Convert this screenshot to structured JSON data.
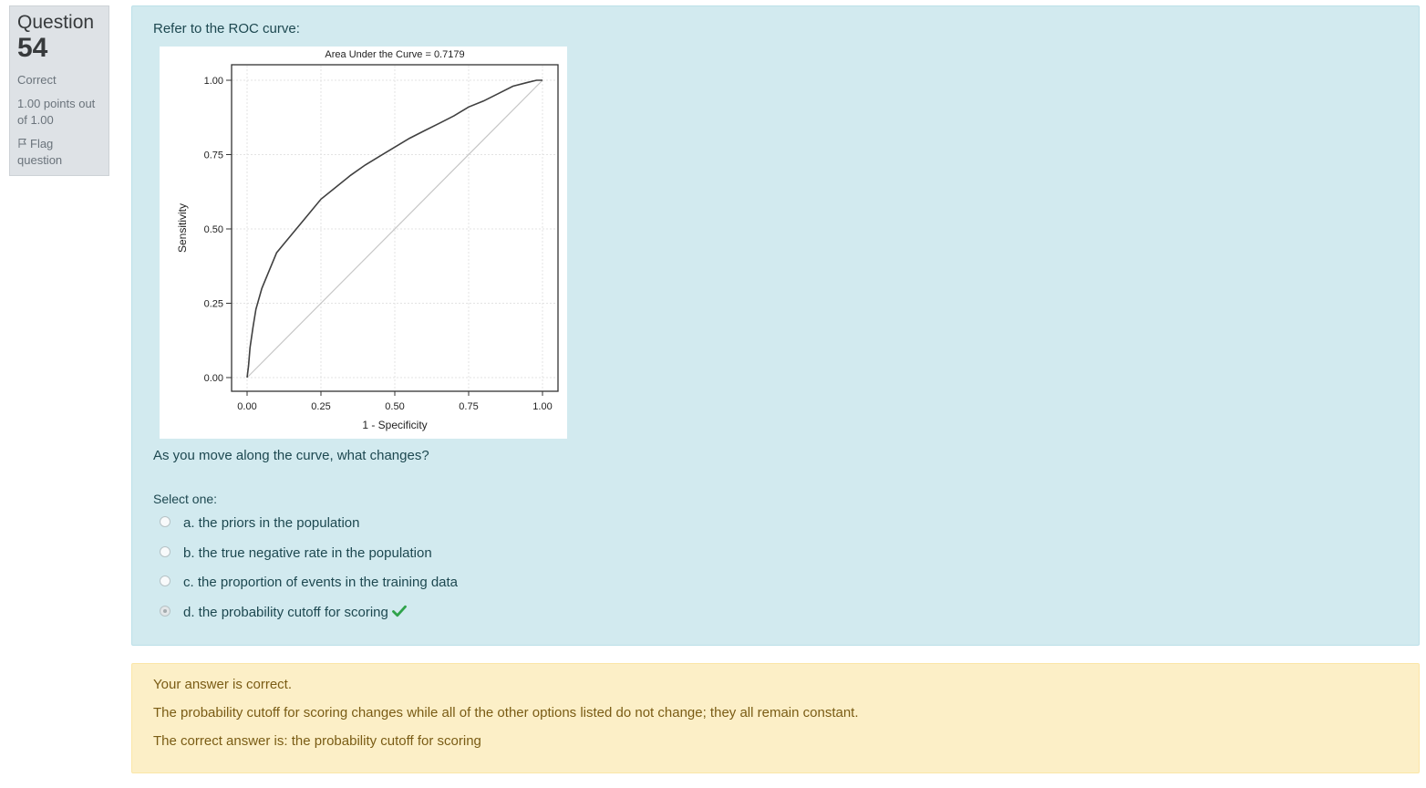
{
  "info": {
    "question_word": "Question",
    "question_number": "54",
    "state": "Correct",
    "grade": "1.00 points out of 1.00",
    "flag_label": "Flag question",
    "flag_icon": "flag-icon"
  },
  "question": {
    "prompt": "Refer to the ROC curve:",
    "text": "As you move along the curve, what changes?",
    "select_prompt": "Select one:",
    "options": [
      {
        "label": "a. the priors in the population",
        "selected": false
      },
      {
        "label": "b. the true negative rate in the population",
        "selected": false
      },
      {
        "label": "c. the proportion of events in the training data",
        "selected": false
      },
      {
        "label": "d. the probability cutoff for scoring",
        "selected": true,
        "correct_icon": "check-icon"
      }
    ]
  },
  "chart_data": {
    "type": "line",
    "title": "Area Under the Curve = 0.7179",
    "xlabel": "1 - Specificity",
    "ylabel": "Sensitivity",
    "xlim": [
      0,
      1
    ],
    "ylim": [
      0,
      1
    ],
    "xticks": [
      "0.00",
      "0.25",
      "0.50",
      "0.75",
      "1.00"
    ],
    "yticks": [
      "0.00",
      "0.25",
      "0.50",
      "0.75",
      "1.00"
    ],
    "grid": true,
    "series": [
      {
        "x": [
          0,
          0.005,
          0.01,
          0.02,
          0.03,
          0.05,
          0.075,
          0.1,
          0.125,
          0.15,
          0.2,
          0.25,
          0.3,
          0.35,
          0.4,
          0.45,
          0.5,
          0.55,
          0.6,
          0.65,
          0.7,
          0.75,
          0.8,
          0.85,
          0.9,
          0.95,
          0.98,
          1.0
        ],
        "y": [
          0,
          0.04,
          0.1,
          0.17,
          0.23,
          0.3,
          0.36,
          0.42,
          0.45,
          0.48,
          0.54,
          0.6,
          0.64,
          0.68,
          0.715,
          0.745,
          0.775,
          0.805,
          0.83,
          0.855,
          0.88,
          0.91,
          0.93,
          0.955,
          0.98,
          0.993,
          1.0,
          1.0
        ],
        "color": "#404040"
      },
      {
        "x": [
          0,
          1
        ],
        "y": [
          0,
          1
        ],
        "color": "#c6c6c6"
      }
    ]
  },
  "feedback": {
    "result": "Your answer is correct.",
    "explanation": "The probability cutoff for scoring changes while all of the other options listed do not change; they all remain constant.",
    "correct_answer": "The correct answer is: the probability cutoff for scoring"
  },
  "colors": {
    "info_bg": "#dee2e6",
    "question_bg": "#d2eaef",
    "feedback_bg": "#fcefc7",
    "check": "#2fa34a"
  }
}
